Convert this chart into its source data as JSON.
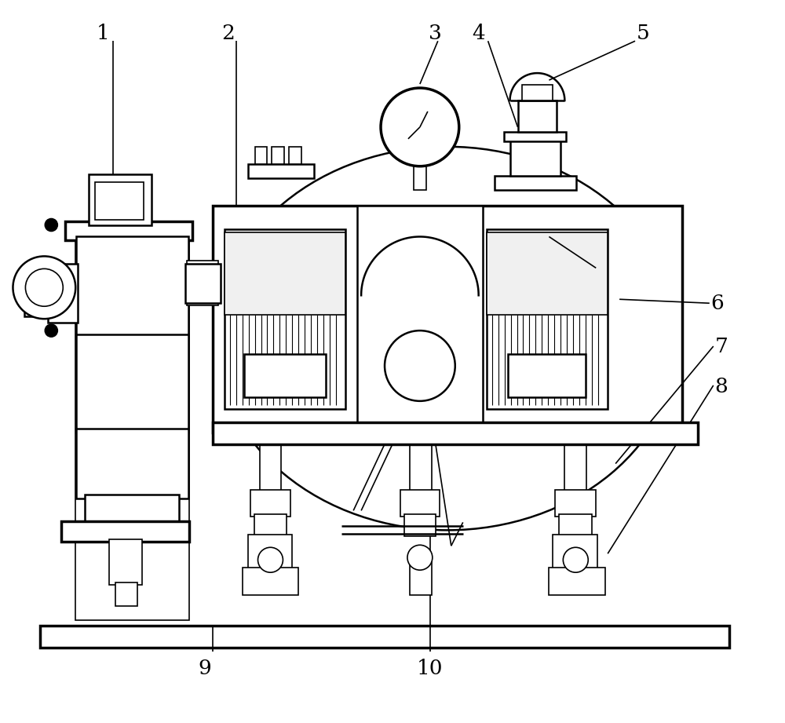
{
  "bg_color": "#ffffff",
  "figsize": [
    10.0,
    9.21
  ],
  "lw_thin": 1.2,
  "lw_med": 1.8,
  "lw_thick": 2.5
}
